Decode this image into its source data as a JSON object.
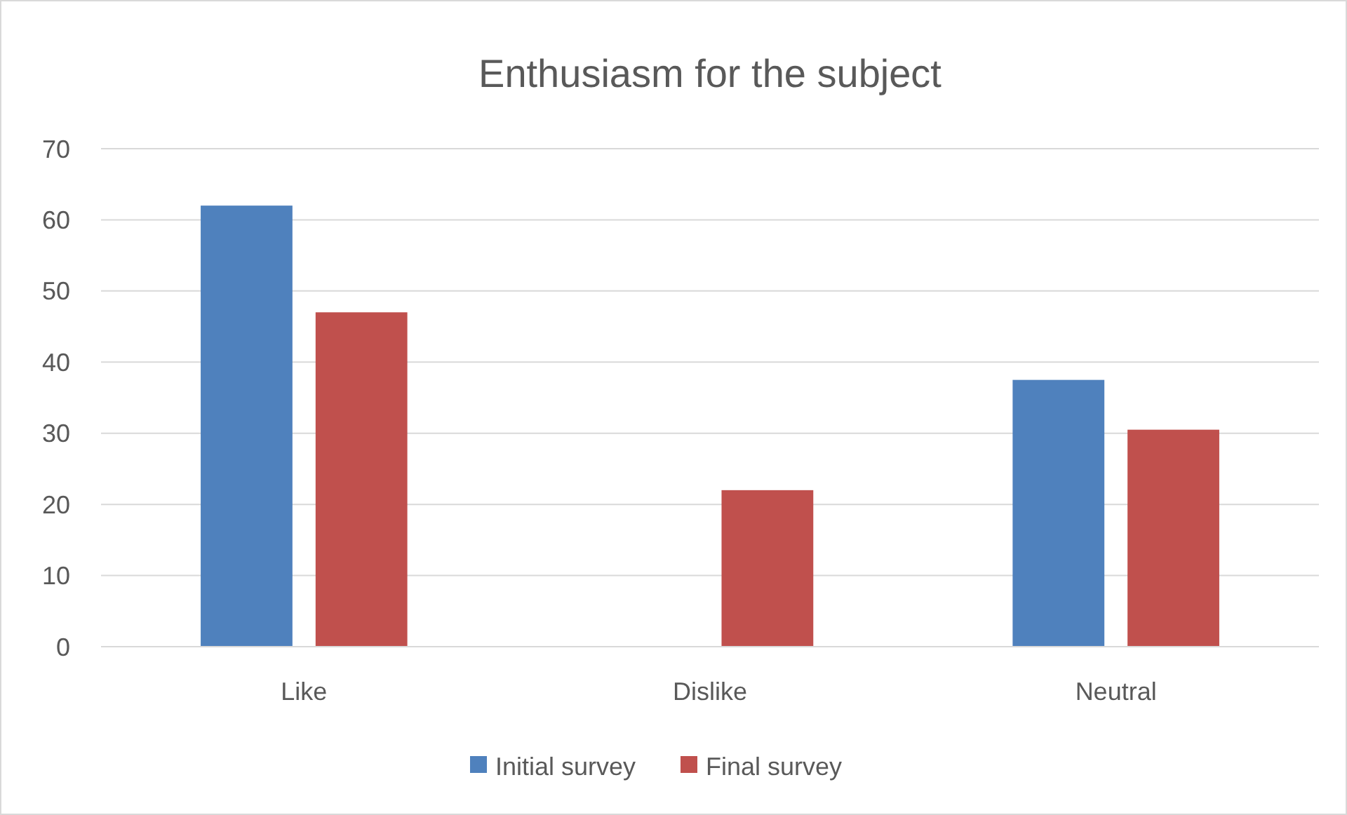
{
  "chart_data": {
    "type": "bar",
    "title": "Enthusiasm for the subject",
    "categories": [
      "Like",
      "Dislike",
      "Neutral"
    ],
    "series": [
      {
        "name": "Initial survey",
        "color": "#4f81bd",
        "values": [
          62,
          0,
          37.5
        ]
      },
      {
        "name": "Final survey",
        "color": "#c0504d",
        "values": [
          47,
          22,
          30.5
        ]
      }
    ],
    "ylim": [
      0,
      70
    ],
    "yticks": [
      0,
      10,
      20,
      30,
      40,
      50,
      60,
      70
    ],
    "grid": "y",
    "legend": "bottom"
  }
}
